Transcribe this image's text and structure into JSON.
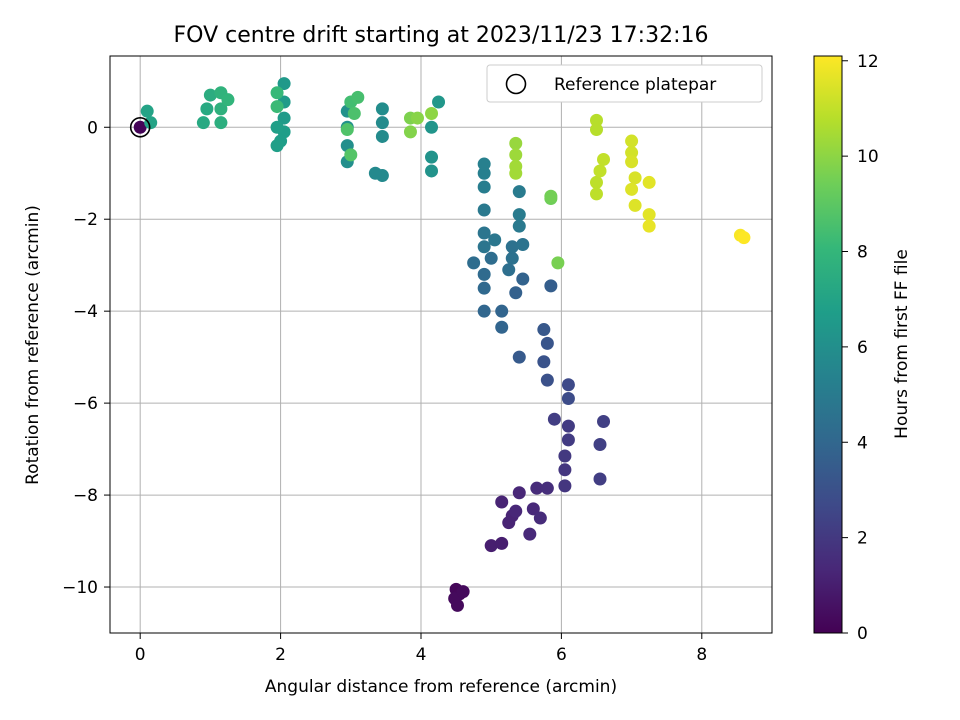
{
  "chart_data": {
    "type": "scatter",
    "title": "FOV centre drift starting at 2023/11/23 17:32:16",
    "xlabel": "Angular distance from reference (arcmin)",
    "ylabel": "Rotation from reference (arcmin)",
    "xlim": [
      -0.43,
      9.0
    ],
    "ylim": [
      -11.0,
      1.55
    ],
    "xticks": [
      0,
      2,
      4,
      6,
      8
    ],
    "yticks": [
      0,
      -2,
      -4,
      -6,
      -8,
      -10
    ],
    "grid": true,
    "legend": {
      "placement": "top-right",
      "label": "Reference platepar"
    },
    "reference_point": {
      "x": 0,
      "y": 0
    },
    "colorbar": {
      "label": "Hours from first FF file",
      "min": 0,
      "max": 12.1,
      "ticks": [
        0,
        2,
        4,
        6,
        8,
        10,
        12
      ],
      "colormap": "viridis"
    },
    "points": [
      {
        "x": 0.0,
        "y": 0.0,
        "c": 0.1
      },
      {
        "x": 4.5,
        "y": -10.05,
        "c": 0.2
      },
      {
        "x": 4.55,
        "y": -10.15,
        "c": 0.2
      },
      {
        "x": 4.48,
        "y": -10.25,
        "c": 0.3
      },
      {
        "x": 4.52,
        "y": -10.4,
        "c": 0.3
      },
      {
        "x": 4.6,
        "y": -10.1,
        "c": 0.3
      },
      {
        "x": 5.0,
        "y": -9.1,
        "c": 1.0
      },
      {
        "x": 5.15,
        "y": -9.05,
        "c": 1.0
      },
      {
        "x": 5.25,
        "y": -8.6,
        "c": 1.2
      },
      {
        "x": 5.3,
        "y": -8.45,
        "c": 1.2
      },
      {
        "x": 5.35,
        "y": -8.35,
        "c": 1.3
      },
      {
        "x": 5.4,
        "y": -7.95,
        "c": 1.3
      },
      {
        "x": 5.15,
        "y": -8.15,
        "c": 1.2
      },
      {
        "x": 5.55,
        "y": -8.85,
        "c": 1.4
      },
      {
        "x": 5.6,
        "y": -8.3,
        "c": 1.4
      },
      {
        "x": 5.7,
        "y": -8.5,
        "c": 1.5
      },
      {
        "x": 5.65,
        "y": -7.85,
        "c": 1.5
      },
      {
        "x": 5.8,
        "y": -7.85,
        "c": 1.6
      },
      {
        "x": 6.05,
        "y": -7.8,
        "c": 1.9
      },
      {
        "x": 6.05,
        "y": -7.45,
        "c": 1.9
      },
      {
        "x": 6.05,
        "y": -7.15,
        "c": 2.0
      },
      {
        "x": 6.1,
        "y": -6.8,
        "c": 2.1
      },
      {
        "x": 6.1,
        "y": -6.5,
        "c": 2.1
      },
      {
        "x": 5.9,
        "y": -6.35,
        "c": 2.2
      },
      {
        "x": 6.55,
        "y": -7.65,
        "c": 2.2
      },
      {
        "x": 6.55,
        "y": -6.9,
        "c": 2.3
      },
      {
        "x": 6.6,
        "y": -6.4,
        "c": 2.3
      },
      {
        "x": 6.1,
        "y": -5.6,
        "c": 2.7
      },
      {
        "x": 6.1,
        "y": -5.9,
        "c": 2.8
      },
      {
        "x": 5.8,
        "y": -5.5,
        "c": 3.0
      },
      {
        "x": 5.75,
        "y": -5.1,
        "c": 3.1
      },
      {
        "x": 5.8,
        "y": -4.7,
        "c": 3.2
      },
      {
        "x": 5.75,
        "y": -4.4,
        "c": 3.3
      },
      {
        "x": 5.4,
        "y": -5.0,
        "c": 3.4
      },
      {
        "x": 5.85,
        "y": -3.45,
        "c": 3.6
      },
      {
        "x": 5.35,
        "y": -3.6,
        "c": 3.7
      },
      {
        "x": 5.45,
        "y": -3.3,
        "c": 3.8
      },
      {
        "x": 5.15,
        "y": -4.35,
        "c": 3.9
      },
      {
        "x": 5.15,
        "y": -4.0,
        "c": 3.9
      },
      {
        "x": 4.9,
        "y": -4.0,
        "c": 4.0
      },
      {
        "x": 4.9,
        "y": -3.5,
        "c": 4.1
      },
      {
        "x": 4.9,
        "y": -3.2,
        "c": 4.2
      },
      {
        "x": 4.75,
        "y": -2.95,
        "c": 4.3
      },
      {
        "x": 5.0,
        "y": -2.85,
        "c": 4.3
      },
      {
        "x": 5.25,
        "y": -3.1,
        "c": 4.4
      },
      {
        "x": 5.3,
        "y": -2.85,
        "c": 4.5
      },
      {
        "x": 5.3,
        "y": -2.6,
        "c": 4.5
      },
      {
        "x": 5.45,
        "y": -2.55,
        "c": 4.6
      },
      {
        "x": 4.9,
        "y": -2.3,
        "c": 4.7
      },
      {
        "x": 4.9,
        "y": -2.6,
        "c": 4.7
      },
      {
        "x": 5.05,
        "y": -2.45,
        "c": 4.8
      },
      {
        "x": 4.9,
        "y": -1.8,
        "c": 4.9
      },
      {
        "x": 5.4,
        "y": -2.15,
        "c": 4.9
      },
      {
        "x": 5.4,
        "y": -1.9,
        "c": 5.0
      },
      {
        "x": 5.4,
        "y": -1.4,
        "c": 5.0
      },
      {
        "x": 4.9,
        "y": -1.3,
        "c": 5.1
      },
      {
        "x": 4.9,
        "y": -1.0,
        "c": 5.2
      },
      {
        "x": 4.9,
        "y": -0.8,
        "c": 5.3
      },
      {
        "x": 3.45,
        "y": -1.05,
        "c": 5.7
      },
      {
        "x": 3.35,
        "y": -1.0,
        "c": 5.7
      },
      {
        "x": 3.45,
        "y": -0.2,
        "c": 5.8
      },
      {
        "x": 3.45,
        "y": 0.1,
        "c": 5.8
      },
      {
        "x": 3.45,
        "y": 0.4,
        "c": 5.9
      },
      {
        "x": 2.95,
        "y": -0.75,
        "c": 6.0
      },
      {
        "x": 2.95,
        "y": -0.4,
        "c": 6.0
      },
      {
        "x": 2.95,
        "y": 0.0,
        "c": 6.1
      },
      {
        "x": 2.95,
        "y": 0.35,
        "c": 6.1
      },
      {
        "x": 4.15,
        "y": -0.95,
        "c": 6.2
      },
      {
        "x": 4.15,
        "y": -0.65,
        "c": 6.2
      },
      {
        "x": 4.15,
        "y": 0.0,
        "c": 6.3
      },
      {
        "x": 4.25,
        "y": 0.55,
        "c": 6.4
      },
      {
        "x": 2.05,
        "y": 0.95,
        "c": 6.5
      },
      {
        "x": 2.05,
        "y": 0.55,
        "c": 6.6
      },
      {
        "x": 2.05,
        "y": 0.2,
        "c": 6.6
      },
      {
        "x": 2.05,
        "y": -0.1,
        "c": 6.7
      },
      {
        "x": 2.0,
        "y": -0.3,
        "c": 6.7
      },
      {
        "x": 1.95,
        "y": -0.4,
        "c": 6.8
      },
      {
        "x": 1.95,
        "y": 0.0,
        "c": 6.8
      },
      {
        "x": 0.1,
        "y": 0.35,
        "c": 7.0
      },
      {
        "x": 0.15,
        "y": 0.1,
        "c": 7.0
      },
      {
        "x": 0.9,
        "y": 0.1,
        "c": 7.3
      },
      {
        "x": 0.95,
        "y": 0.4,
        "c": 7.3
      },
      {
        "x": 1.0,
        "y": 0.7,
        "c": 7.5
      },
      {
        "x": 1.15,
        "y": 0.1,
        "c": 7.6
      },
      {
        "x": 1.15,
        "y": 0.4,
        "c": 7.7
      },
      {
        "x": 1.15,
        "y": 0.75,
        "c": 7.8
      },
      {
        "x": 1.25,
        "y": 0.6,
        "c": 7.9
      },
      {
        "x": 1.95,
        "y": 0.75,
        "c": 8.1
      },
      {
        "x": 1.95,
        "y": 0.45,
        "c": 8.2
      },
      {
        "x": 3.0,
        "y": 0.55,
        "c": 8.4
      },
      {
        "x": 3.1,
        "y": 0.65,
        "c": 8.5
      },
      {
        "x": 3.05,
        "y": 0.3,
        "c": 8.6
      },
      {
        "x": 2.95,
        "y": -0.05,
        "c": 8.7
      },
      {
        "x": 3.0,
        "y": -0.6,
        "c": 8.8
      },
      {
        "x": 5.85,
        "y": -1.55,
        "c": 9.4
      },
      {
        "x": 5.85,
        "y": -1.5,
        "c": 9.5
      },
      {
        "x": 5.95,
        "y": -2.95,
        "c": 9.6
      },
      {
        "x": 3.85,
        "y": 0.2,
        "c": 9.7
      },
      {
        "x": 3.85,
        "y": -0.1,
        "c": 9.8
      },
      {
        "x": 3.95,
        "y": 0.2,
        "c": 9.9
      },
      {
        "x": 4.15,
        "y": 0.3,
        "c": 10.0
      },
      {
        "x": 5.35,
        "y": -0.35,
        "c": 10.2
      },
      {
        "x": 5.35,
        "y": -0.6,
        "c": 10.3
      },
      {
        "x": 5.35,
        "y": -0.85,
        "c": 10.4
      },
      {
        "x": 5.35,
        "y": -1.0,
        "c": 10.4
      },
      {
        "x": 6.5,
        "y": 0.15,
        "c": 10.8
      },
      {
        "x": 6.5,
        "y": -0.05,
        "c": 10.8
      },
      {
        "x": 6.5,
        "y": -1.2,
        "c": 10.9
      },
      {
        "x": 6.5,
        "y": -1.45,
        "c": 10.9
      },
      {
        "x": 6.55,
        "y": -0.95,
        "c": 11.0
      },
      {
        "x": 6.6,
        "y": -0.7,
        "c": 11.0
      },
      {
        "x": 7.0,
        "y": -0.3,
        "c": 11.3
      },
      {
        "x": 7.0,
        "y": -0.55,
        "c": 11.3
      },
      {
        "x": 7.0,
        "y": -0.75,
        "c": 11.4
      },
      {
        "x": 7.05,
        "y": -1.1,
        "c": 11.4
      },
      {
        "x": 7.0,
        "y": -1.35,
        "c": 11.5
      },
      {
        "x": 7.05,
        "y": -1.7,
        "c": 11.5
      },
      {
        "x": 7.25,
        "y": -1.2,
        "c": 11.6
      },
      {
        "x": 7.25,
        "y": -1.9,
        "c": 11.6
      },
      {
        "x": 7.25,
        "y": -2.15,
        "c": 11.7
      },
      {
        "x": 8.55,
        "y": -2.35,
        "c": 12.0
      },
      {
        "x": 8.6,
        "y": -2.4,
        "c": 12.1
      }
    ]
  }
}
